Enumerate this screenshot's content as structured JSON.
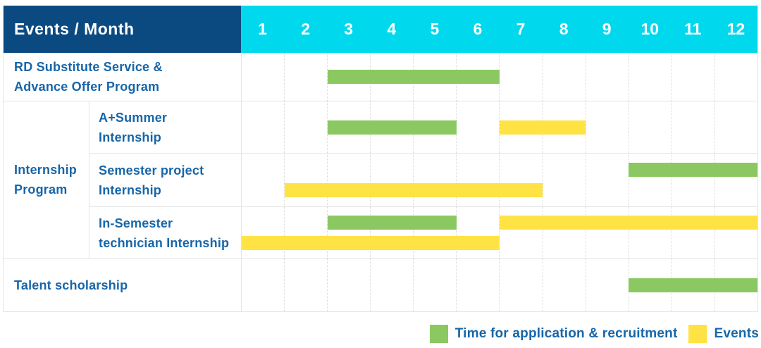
{
  "header": {
    "events_month_label": "Events / Month",
    "months": [
      "1",
      "2",
      "3",
      "4",
      "5",
      "6",
      "7",
      "8",
      "9",
      "10",
      "11",
      "12"
    ]
  },
  "colors": {
    "header_navy": "#0b4a81",
    "header_cyan": "#00d8ee",
    "bar_green": "#8bc862",
    "bar_yellow": "#ffe345",
    "label_blue": "#1766a9"
  },
  "row_labels": {
    "rd": {
      "line1": "RD Substitute Service &",
      "line2": "Advance Offer Program"
    },
    "summer": {
      "line1": "A+Summer",
      "line2": "Internship"
    },
    "semester": {
      "line1": "Semester project",
      "line2": "Internship"
    },
    "insem": {
      "line1": "In-Semester",
      "line2": "technician Internship"
    },
    "talent": {
      "line1": "Talent scholarship"
    }
  },
  "group_label": {
    "line1": "Internship",
    "line2": "Program"
  },
  "legend": {
    "items": [
      {
        "label": "Time for application & recruitment",
        "swatch": "green"
      },
      {
        "label": "Events",
        "swatch": "yellow"
      }
    ]
  },
  "chart_data": {
    "type": "table",
    "subtype": "gantt",
    "title": "Events / Month",
    "x_axis": {
      "unit": "month",
      "ticks": [
        1,
        2,
        3,
        4,
        5,
        6,
        7,
        8,
        9,
        10,
        11,
        12
      ]
    },
    "legend": [
      {
        "name": "Time for application & recruitment",
        "color": "#8bc862"
      },
      {
        "name": "Events",
        "color": "#ffe345"
      }
    ],
    "rows": [
      {
        "id": "rd",
        "group": null,
        "event": "RD Substitute Service & Advance Offer Program",
        "lanes": [
          [
            {
              "series": "Time for application & recruitment",
              "color_key": "green",
              "start_month": 3,
              "end_month": 6
            }
          ]
        ]
      },
      {
        "id": "summer",
        "group": "Internship Program",
        "event": "A+Summer Internship",
        "lanes": [
          [
            {
              "series": "Time for application & recruitment",
              "color_key": "green",
              "start_month": 3,
              "end_month": 5
            },
            {
              "series": "Events",
              "color_key": "yellow",
              "start_month": 7,
              "end_month": 8
            }
          ]
        ]
      },
      {
        "id": "semester",
        "group": "Internship Program",
        "event": "Semester project Internship",
        "lanes": [
          [
            {
              "series": "Time for application & recruitment",
              "color_key": "green",
              "start_month": 10,
              "end_month": 12
            }
          ],
          [
            {
              "series": "Events",
              "color_key": "yellow",
              "start_month": 2,
              "end_month": 7
            }
          ]
        ]
      },
      {
        "id": "insem",
        "group": "Internship Program",
        "event": "In-Semester technician Internship",
        "lanes": [
          [
            {
              "series": "Time for application & recruitment",
              "color_key": "green",
              "start_month": 3,
              "end_month": 5
            },
            {
              "series": "Events",
              "color_key": "yellow",
              "start_month": 7,
              "end_month": 12
            }
          ],
          [
            {
              "series": "Events",
              "color_key": "yellow",
              "start_month": 1,
              "end_month": 6
            }
          ]
        ]
      },
      {
        "id": "talent",
        "group": null,
        "event": "Talent scholarship",
        "lanes": [
          [
            {
              "series": "Time for application & recruitment",
              "color_key": "green",
              "start_month": 10,
              "end_month": 12
            }
          ]
        ]
      }
    ]
  }
}
